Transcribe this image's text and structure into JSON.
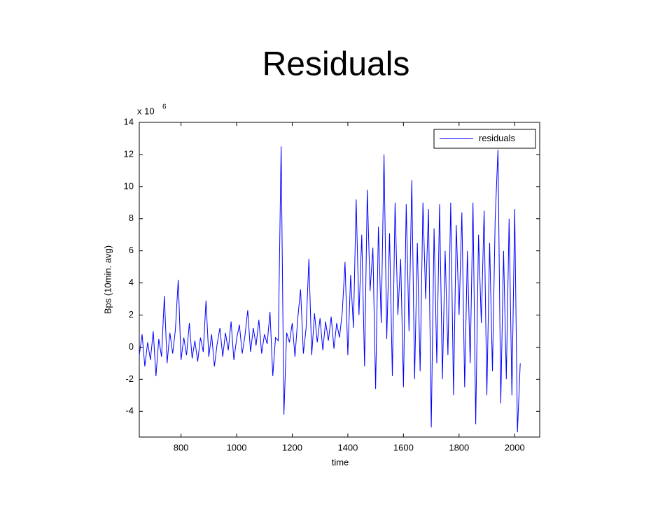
{
  "chart_data": {
    "type": "line",
    "title": "Residuals",
    "xlabel": "time",
    "ylabel": "Bps (10min. avg)",
    "y_multiplier": {
      "base": "x 10",
      "exponent": 6
    },
    "xlim": [
      650,
      2090
    ],
    "xticks": [
      800,
      1000,
      1200,
      1400,
      1600,
      1800,
      2000
    ],
    "ylim": [
      -5.6,
      14
    ],
    "yticks": [
      -4,
      -2,
      0,
      2,
      4,
      6,
      8,
      10,
      12,
      14
    ],
    "legend": "upper right",
    "x": [
      650,
      660,
      670,
      680,
      690,
      700,
      710,
      720,
      730,
      740,
      750,
      760,
      770,
      780,
      790,
      800,
      810,
      820,
      830,
      840,
      850,
      860,
      870,
      880,
      890,
      900,
      910,
      920,
      930,
      940,
      950,
      960,
      970,
      980,
      990,
      1000,
      1010,
      1020,
      1030,
      1040,
      1050,
      1060,
      1070,
      1080,
      1090,
      1100,
      1110,
      1120,
      1130,
      1140,
      1150,
      1160,
      1170,
      1180,
      1190,
      1200,
      1210,
      1220,
      1230,
      1240,
      1250,
      1260,
      1270,
      1280,
      1290,
      1300,
      1310,
      1320,
      1330,
      1340,
      1350,
      1360,
      1370,
      1380,
      1390,
      1400,
      1410,
      1420,
      1430,
      1440,
      1450,
      1460,
      1470,
      1480,
      1490,
      1500,
      1510,
      1520,
      1530,
      1540,
      1550,
      1560,
      1570,
      1580,
      1590,
      1600,
      1610,
      1620,
      1630,
      1640,
      1650,
      1660,
      1670,
      1680,
      1690,
      1700,
      1710,
      1720,
      1730,
      1740,
      1750,
      1760,
      1770,
      1780,
      1790,
      1800,
      1810,
      1820,
      1830,
      1840,
      1850,
      1860,
      1870,
      1880,
      1890,
      1900,
      1910,
      1920,
      1930,
      1940,
      1950,
      1960,
      1970,
      1980,
      1990,
      2000,
      2010,
      2020
    ],
    "series": [
      {
        "name": "residuals",
        "color": "#0000ff",
        "values": [
          -0.5,
          0.8,
          -1.2,
          0.3,
          -0.8,
          1.0,
          -1.8,
          0.5,
          -0.6,
          3.2,
          -1.0,
          0.9,
          -0.4,
          1.1,
          4.2,
          -0.8,
          0.6,
          -0.5,
          1.5,
          -0.7,
          0.4,
          -0.9,
          0.6,
          -0.3,
          2.9,
          -0.6,
          0.8,
          -1.2,
          0.2,
          1.2,
          -0.6,
          0.9,
          -0.2,
          1.6,
          -0.8,
          0.5,
          1.4,
          -0.4,
          0.7,
          2.3,
          -0.3,
          1.2,
          0.1,
          1.7,
          -0.4,
          0.8,
          0.2,
          2.2,
          -1.8,
          0.6,
          0.4,
          12.5,
          -4.2,
          0.9,
          0.3,
          1.5,
          -0.6,
          1.8,
          3.6,
          -0.4,
          1.2,
          5.5,
          -0.5,
          2.1,
          0.3,
          1.8,
          -0.2,
          1.6,
          0.4,
          1.9,
          -0.1,
          1.5,
          0.6,
          2.2,
          5.3,
          -0.5,
          4.5,
          1.2,
          9.2,
          2.0,
          7.0,
          -1.2,
          9.8,
          3.5,
          6.2,
          -2.6,
          7.5,
          1.5,
          12.0,
          0.5,
          7.1,
          -1.8,
          9.0,
          2.0,
          5.5,
          -2.5,
          8.9,
          1.0,
          10.4,
          -2.0,
          6.5,
          -1.5,
          9.0,
          3.0,
          8.6,
          -5.0,
          7.4,
          -1.0,
          8.9,
          -2.0,
          6.0,
          -0.5,
          9.0,
          -3.0,
          7.6,
          2.0,
          8.4,
          -2.5,
          6.0,
          -1.0,
          9.0,
          -4.8,
          7.0,
          1.5,
          8.5,
          -3.0,
          6.5,
          -1.5,
          8.0,
          12.3,
          -3.5,
          6.0,
          -2.0,
          8.0,
          -3.0,
          8.6,
          -5.3,
          -1.0
        ]
      }
    ]
  }
}
